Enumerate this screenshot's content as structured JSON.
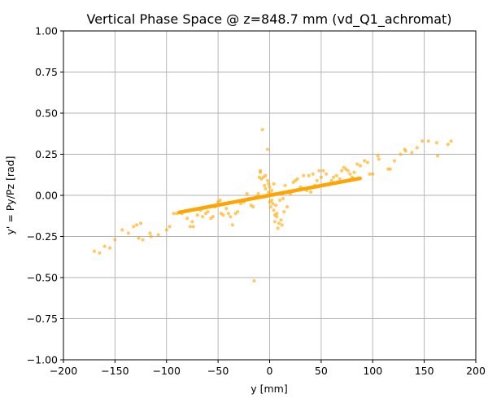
{
  "chart_data": {
    "type": "scatter",
    "title": "Vertical Phase Space @ z=848.7 mm (vd_Q1_achromat)",
    "xlabel": "y [mm]",
    "ylabel": "y' = Py/Pz [rad]",
    "xlim": [
      -200,
      200
    ],
    "ylim": [
      -1.0,
      1.0
    ],
    "xticks": [
      -200,
      -150,
      -100,
      -50,
      0,
      50,
      100,
      150,
      200
    ],
    "xtick_labels": [
      "−200",
      "−150",
      "−100",
      "−50",
      "0",
      "50",
      "100",
      "150",
      "200"
    ],
    "yticks": [
      -1.0,
      -0.75,
      -0.5,
      -0.25,
      0.0,
      0.25,
      0.5,
      0.75,
      1.0
    ],
    "ytick_labels": [
      "−1.00",
      "−0.75",
      "−0.50",
      "−0.25",
      "0.00",
      "0.25",
      "0.50",
      "0.75",
      "1.00"
    ],
    "grid": true,
    "point_color": "#ffa500",
    "series": [
      {
        "core_band": {
          "x_range": [
            -88,
            88
          ],
          "slope": 0.00118,
          "count": 300
        },
        "points": [
          [
            -170,
            -0.34
          ],
          [
            -165,
            -0.35
          ],
          [
            -160,
            -0.31
          ],
          [
            -155,
            -0.32
          ],
          [
            -150,
            -0.27
          ],
          [
            -143,
            -0.21
          ],
          [
            -137,
            -0.23
          ],
          [
            -132,
            -0.19
          ],
          [
            -129,
            -0.18
          ],
          [
            -127,
            -0.26
          ],
          [
            -125,
            -0.17
          ],
          [
            -123,
            -0.27
          ],
          [
            -116,
            -0.23
          ],
          [
            -115,
            -0.25
          ],
          [
            -108,
            -0.24
          ],
          [
            -100,
            -0.21
          ],
          [
            -97,
            -0.19
          ],
          [
            -93,
            -0.11
          ],
          [
            -90,
            -0.11
          ],
          [
            -85,
            -0.11
          ],
          [
            -80,
            -0.14
          ],
          [
            -77,
            -0.19
          ],
          [
            -75,
            -0.16
          ],
          [
            -74,
            -0.19
          ],
          [
            -70,
            -0.12
          ],
          [
            -67,
            -0.09
          ],
          [
            -65,
            -0.13
          ],
          [
            -62,
            -0.11
          ],
          [
            -60,
            -0.1
          ],
          [
            -57,
            -0.14
          ],
          [
            -55,
            -0.13
          ],
          [
            -53,
            -0.07
          ],
          [
            -50,
            -0.04
          ],
          [
            -48,
            -0.03
          ],
          [
            -47,
            -0.11
          ],
          [
            -45,
            -0.12
          ],
          [
            -42,
            -0.08
          ],
          [
            -40,
            -0.11
          ],
          [
            -38,
            -0.13
          ],
          [
            -36,
            -0.18
          ],
          [
            -33,
            -0.11
          ],
          [
            -31,
            -0.1
          ],
          [
            -28,
            -0.05
          ],
          [
            -25,
            -0.04
          ],
          [
            -22,
            0.01
          ],
          [
            -20,
            -0.02
          ],
          [
            -18,
            -0.06
          ],
          [
            -16,
            -0.07
          ],
          [
            -15,
            -0.52
          ],
          [
            -13,
            -0.01
          ],
          [
            -11,
            0.01
          ],
          [
            -10,
            0.11
          ],
          [
            -9,
            0.14
          ],
          [
            -9,
            0.15
          ],
          [
            -8,
            0.1
          ],
          [
            -7,
            0.4
          ],
          [
            -6,
            0.11
          ],
          [
            -5,
            0.06
          ],
          [
            -4,
            0.12
          ],
          [
            -4,
            0.04
          ],
          [
            -3,
            0.0
          ],
          [
            -2,
            0.28
          ],
          [
            -2,
            0.09
          ],
          [
            -1,
            0.07
          ],
          [
            -1,
            0.02
          ],
          [
            0,
            0.05
          ],
          [
            0,
            -0.04
          ],
          [
            1,
            0.01
          ],
          [
            1,
            -0.07
          ],
          [
            2,
            0.03
          ],
          [
            2,
            -0.03
          ],
          [
            3,
            -0.05
          ],
          [
            4,
            -0.09
          ],
          [
            4,
            0.07
          ],
          [
            5,
            -0.12
          ],
          [
            5,
            -0.16
          ],
          [
            6,
            -0.06
          ],
          [
            7,
            -0.11
          ],
          [
            7,
            -0.13
          ],
          [
            8,
            -0.2
          ],
          [
            9,
            -0.17
          ],
          [
            10,
            -0.03
          ],
          [
            11,
            -0.15
          ],
          [
            12,
            -0.18
          ],
          [
            13,
            -0.02
          ],
          [
            14,
            -0.1
          ],
          [
            15,
            0.06
          ],
          [
            17,
            -0.07
          ],
          [
            20,
            0.01
          ],
          [
            23,
            0.08
          ],
          [
            25,
            0.09
          ],
          [
            27,
            0.1
          ],
          [
            30,
            0.05
          ],
          [
            33,
            0.12
          ],
          [
            36,
            0.03
          ],
          [
            38,
            0.12
          ],
          [
            40,
            0.02
          ],
          [
            42,
            0.13
          ],
          [
            44,
            0.06
          ],
          [
            46,
            0.09
          ],
          [
            48,
            0.15
          ],
          [
            50,
            0.11
          ],
          [
            52,
            0.15
          ],
          [
            55,
            0.13
          ],
          [
            58,
            0.07
          ],
          [
            60,
            0.09
          ],
          [
            62,
            0.11
          ],
          [
            65,
            0.12
          ],
          [
            68,
            0.1
          ],
          [
            70,
            0.15
          ],
          [
            72,
            0.17
          ],
          [
            74,
            0.16
          ],
          [
            76,
            0.15
          ],
          [
            78,
            0.13
          ],
          [
            80,
            0.11
          ],
          [
            82,
            0.14
          ],
          [
            85,
            0.19
          ],
          [
            88,
            0.18
          ],
          [
            92,
            0.21
          ],
          [
            95,
            0.2
          ],
          [
            97,
            0.13
          ],
          [
            100,
            0.13
          ],
          [
            105,
            0.24
          ],
          [
            106,
            0.22
          ],
          [
            115,
            0.16
          ],
          [
            117,
            0.16
          ],
          [
            121,
            0.21
          ],
          [
            127,
            0.25
          ],
          [
            131,
            0.28
          ],
          [
            132,
            0.27
          ],
          [
            138,
            0.26
          ],
          [
            143,
            0.29
          ],
          [
            148,
            0.33
          ],
          [
            154,
            0.33
          ],
          [
            162,
            0.32
          ],
          [
            163,
            0.24
          ],
          [
            173,
            0.31
          ],
          [
            176,
            0.33
          ]
        ]
      }
    ]
  }
}
